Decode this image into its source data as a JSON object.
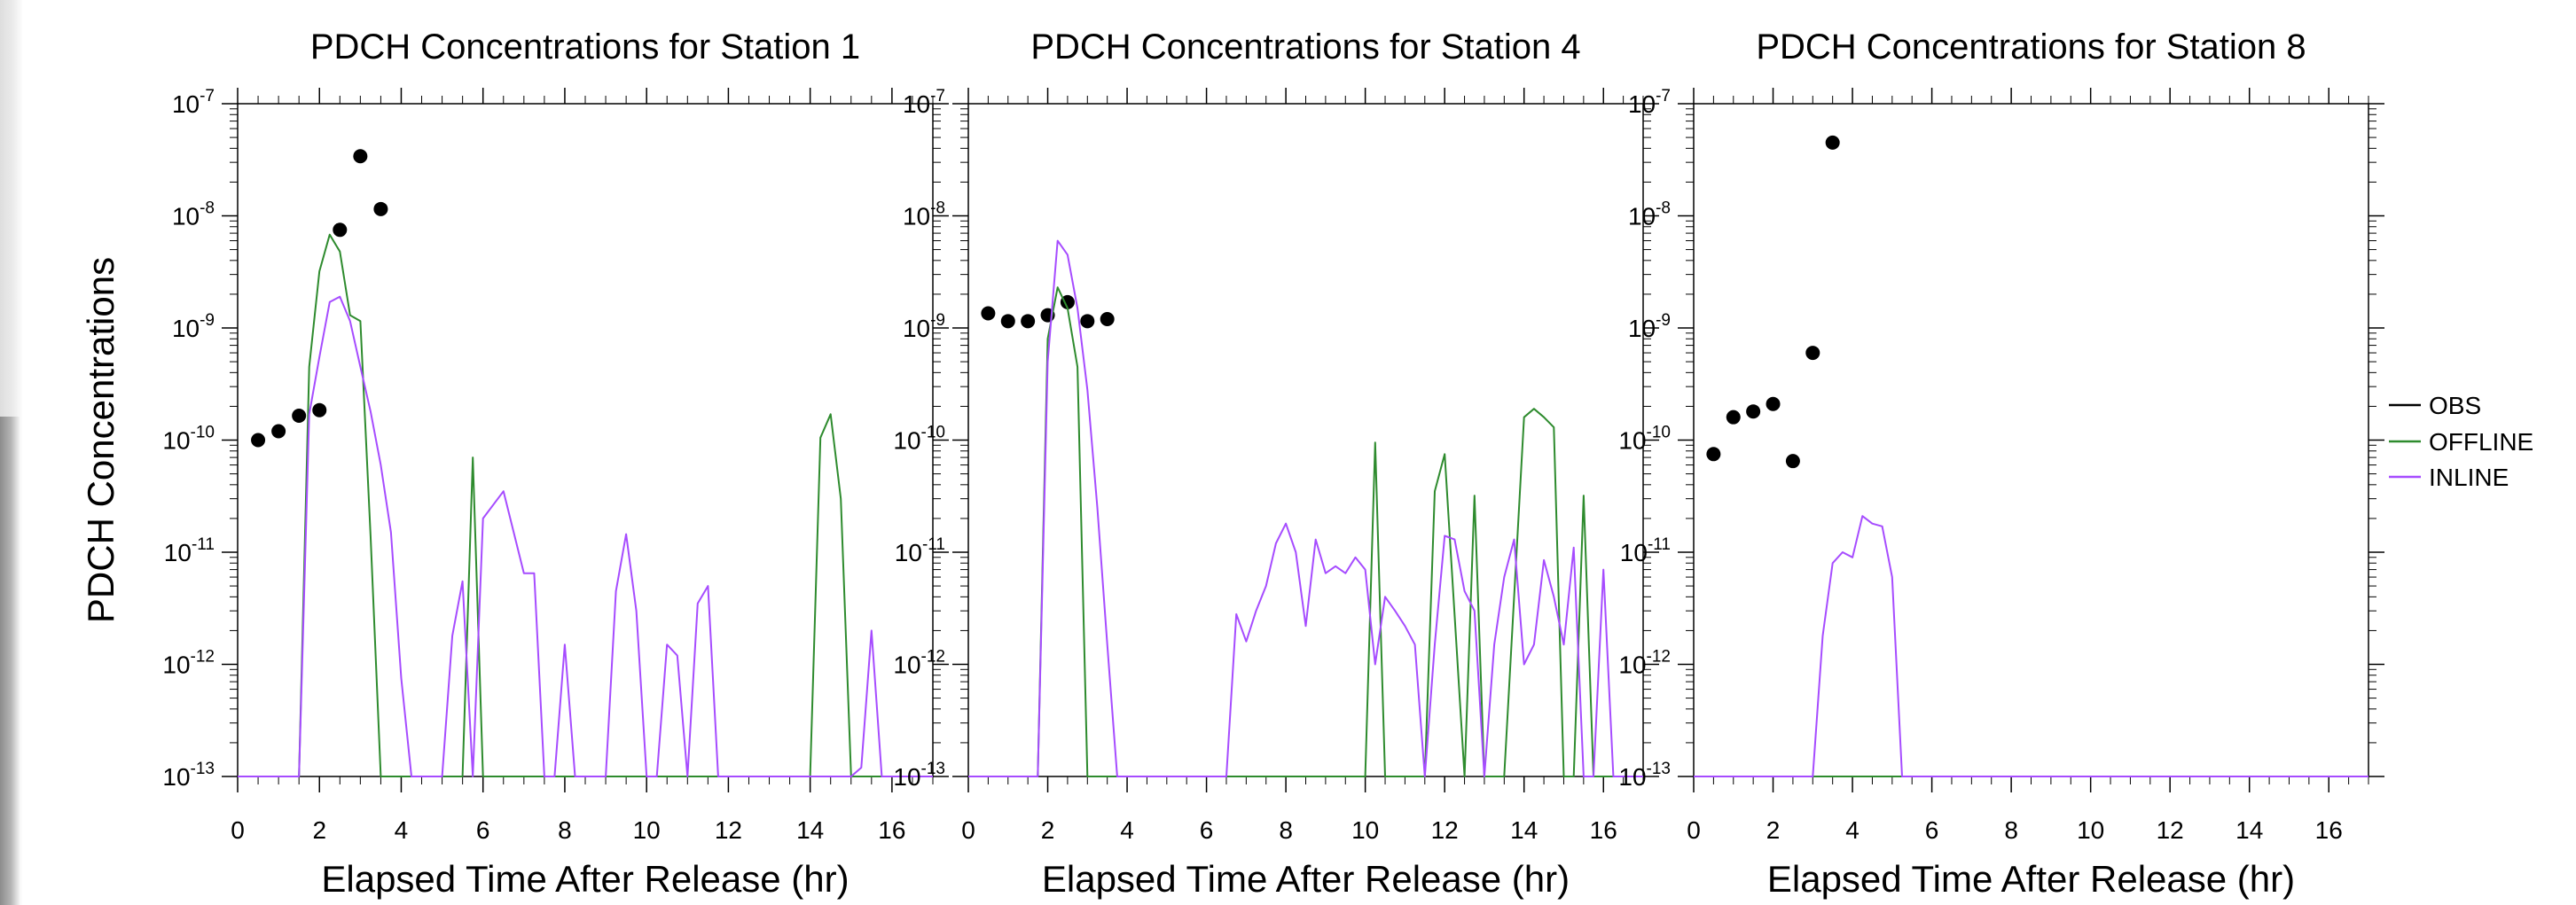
{
  "chart_data": [
    {
      "type": "line",
      "title": "PDCH Concentrations for Station 1",
      "xlabel": "Elapsed Time After Release (hr)",
      "ylabel": "PDCH Concentrations",
      "xlim": [
        0,
        17
      ],
      "ylim": [
        1e-13,
        1e-07
      ],
      "yscale": "log",
      "xticks": [
        0,
        2,
        4,
        6,
        8,
        10,
        12,
        14,
        16
      ],
      "yticks": [
        1e-13,
        1e-12,
        1e-11,
        1e-10,
        1e-09,
        1e-08,
        1e-07
      ],
      "series": [
        {
          "name": "OBS",
          "style": "markers",
          "color": "#000000",
          "x": [
            0.5,
            1.0,
            1.5,
            2.0,
            2.5,
            3.0,
            3.5
          ],
          "y": [
            1e-10,
            1.2e-10,
            1.65e-10,
            1.85e-10,
            7.5e-09,
            3.4e-08,
            1.15e-08
          ]
        },
        {
          "name": "OFFLINE",
          "style": "line",
          "color": "#2e8b2e",
          "x": [
            0,
            1.5,
            1.75,
            2.0,
            2.25,
            2.5,
            2.75,
            3.0,
            3.25,
            3.5,
            5.5,
            5.75,
            6.0,
            14.0,
            14.25,
            14.5,
            14.75,
            15.0,
            17.0
          ],
          "y": [
            1e-13,
            1e-13,
            4.5e-10,
            3.2e-09,
            6.8e-09,
            4.8e-09,
            1.3e-09,
            1.15e-09,
            1.4e-11,
            1e-13,
            1e-13,
            7e-11,
            1e-13,
            1e-13,
            1.05e-10,
            1.7e-10,
            3e-11,
            1e-13,
            1e-13
          ]
        },
        {
          "name": "INLINE",
          "style": "line",
          "color": "#a64cff",
          "x": [
            0,
            1.5,
            1.75,
            2.0,
            2.25,
            2.5,
            2.75,
            3.0,
            3.25,
            3.5,
            3.75,
            4.0,
            4.25,
            5.0,
            5.25,
            5.5,
            5.75,
            6.0,
            6.5,
            7.0,
            7.25,
            7.5,
            7.75,
            8.0,
            8.25,
            9.0,
            9.25,
            9.5,
            9.75,
            10.0,
            10.25,
            10.5,
            10.75,
            11.0,
            11.25,
            11.5,
            11.75,
            15.0,
            15.25,
            15.5,
            15.75,
            17.0
          ],
          "y": [
            1e-13,
            1e-13,
            1.7e-10,
            5.5e-10,
            1.7e-09,
            1.9e-09,
            1.15e-09,
            4.5e-10,
            1.8e-10,
            6e-11,
            1.5e-11,
            7.5e-13,
            1e-13,
            1e-13,
            1.8e-12,
            5.5e-12,
            1e-13,
            2e-11,
            3.5e-11,
            6.5e-12,
            6.5e-12,
            1e-13,
            1e-13,
            1.5e-12,
            1e-13,
            1e-13,
            4.5e-12,
            1.45e-11,
            3e-12,
            1e-13,
            1e-13,
            1.5e-12,
            1.2e-12,
            1e-13,
            3.5e-12,
            5e-12,
            1e-13,
            1e-13,
            1.2e-13,
            2e-12,
            1e-13,
            1e-13
          ]
        }
      ]
    },
    {
      "type": "line",
      "title": "PDCH Concentrations for Station 4",
      "xlabel": "Elapsed Time After Release (hr)",
      "ylabel": "",
      "xlim": [
        0,
        17
      ],
      "ylim": [
        1e-13,
        1e-07
      ],
      "yscale": "log",
      "xticks": [
        0,
        2,
        4,
        6,
        8,
        10,
        12,
        14,
        16
      ],
      "yticks": [
        1e-13,
        1e-12,
        1e-11,
        1e-10,
        1e-09,
        1e-08,
        1e-07
      ],
      "series": [
        {
          "name": "OBS",
          "style": "markers",
          "color": "#000000",
          "x": [
            0.5,
            1.0,
            1.5,
            2.0,
            2.5,
            3.0,
            3.5
          ],
          "y": [
            1.35e-09,
            1.15e-09,
            1.15e-09,
            1.3e-09,
            1.7e-09,
            1.15e-09,
            1.2e-09
          ]
        },
        {
          "name": "OFFLINE",
          "style": "line",
          "color": "#2e8b2e",
          "x": [
            0,
            1.75,
            2.0,
            2.25,
            2.5,
            2.75,
            3.0,
            10.0,
            10.25,
            10.5,
            11.5,
            11.75,
            12.0,
            12.5,
            12.75,
            13.0,
            13.5,
            14.0,
            14.25,
            14.5,
            14.75,
            15.0,
            15.25,
            15.5,
            15.75,
            17.0
          ],
          "y": [
            1e-13,
            1e-13,
            8e-10,
            2.3e-09,
            1.5e-09,
            4.5e-10,
            1e-13,
            1e-13,
            9.5e-11,
            1e-13,
            1e-13,
            3.5e-11,
            7.5e-11,
            1e-13,
            3.2e-11,
            1e-13,
            1e-13,
            1.6e-10,
            1.9e-10,
            1.6e-10,
            1.3e-10,
            1e-13,
            1e-13,
            3.2e-11,
            1e-13,
            1e-13
          ]
        },
        {
          "name": "INLINE",
          "style": "line",
          "color": "#a64cff",
          "x": [
            0,
            1.75,
            2.0,
            2.25,
            2.5,
            2.75,
            3.0,
            3.25,
            3.5,
            3.75,
            4.0,
            6.5,
            6.75,
            7.0,
            7.25,
            7.5,
            7.75,
            8.0,
            8.25,
            8.5,
            8.75,
            9.0,
            9.25,
            9.5,
            9.75,
            10.0,
            10.25,
            10.5,
            10.75,
            11.0,
            11.25,
            11.5,
            11.75,
            12.0,
            12.25,
            12.5,
            12.75,
            13.0,
            13.25,
            13.5,
            13.75,
            14.0,
            14.25,
            14.5,
            14.75,
            15.0,
            15.25,
            15.5,
            15.75,
            16.0,
            16.25,
            17.0
          ],
          "y": [
            1e-13,
            1e-13,
            5e-10,
            6e-09,
            4.5e-09,
            1.5e-09,
            2.8e-10,
            2.5e-11,
            1.5e-12,
            1e-13,
            1e-13,
            1e-13,
            2.8e-12,
            1.6e-12,
            3e-12,
            5e-12,
            1.2e-11,
            1.8e-11,
            1e-11,
            2.2e-12,
            1.3e-11,
            6.5e-12,
            7.5e-12,
            6.5e-12,
            9e-12,
            7e-12,
            1e-12,
            4e-12,
            3e-12,
            2.2e-12,
            1.5e-12,
            1e-13,
            1.5e-12,
            1.4e-11,
            1.3e-11,
            4.5e-12,
            3e-12,
            1e-13,
            1.5e-12,
            6e-12,
            1.3e-11,
            1e-12,
            1.5e-12,
            8.5e-12,
            4e-12,
            1.5e-12,
            1.1e-11,
            1e-13,
            1e-13,
            7e-12,
            1e-13,
            1e-13
          ]
        }
      ]
    },
    {
      "type": "line",
      "title": "PDCH Concentrations for Station 8",
      "xlabel": "Elapsed Time After Release (hr)",
      "ylabel": "",
      "xlim": [
        0,
        17
      ],
      "ylim": [
        1e-13,
        1e-07
      ],
      "yscale": "log",
      "xticks": [
        0,
        2,
        4,
        6,
        8,
        10,
        12,
        14,
        16
      ],
      "yticks": [
        1e-13,
        1e-12,
        1e-11,
        1e-10,
        1e-09,
        1e-08,
        1e-07
      ],
      "series": [
        {
          "name": "OBS",
          "style": "markers",
          "color": "#000000",
          "x": [
            0.5,
            1.0,
            1.5,
            2.0,
            2.5,
            3.0,
            3.5
          ],
          "y": [
            7.5e-11,
            1.6e-10,
            1.8e-10,
            2.1e-10,
            6.5e-11,
            6e-10,
            4.5e-08
          ]
        },
        {
          "name": "OFFLINE",
          "style": "line",
          "color": "#2e8b2e",
          "x": [
            0,
            17.0
          ],
          "y": [
            1e-13,
            1e-13
          ]
        },
        {
          "name": "INLINE",
          "style": "line",
          "color": "#a64cff",
          "x": [
            0,
            3.0,
            3.25,
            3.5,
            3.75,
            4.0,
            4.25,
            4.5,
            4.75,
            5.0,
            5.25,
            17.0
          ],
          "y": [
            1e-13,
            1e-13,
            1.8e-12,
            8e-12,
            1e-11,
            9e-12,
            2.1e-11,
            1.8e-11,
            1.7e-11,
            6e-12,
            1e-13,
            1e-13
          ]
        }
      ]
    }
  ],
  "legend": {
    "position": "right",
    "items": [
      {
        "label": "OBS",
        "color": "#000000"
      },
      {
        "label": "OFFLINE",
        "color": "#2e8b2e"
      },
      {
        "label": "INLINE",
        "color": "#a64cff"
      }
    ]
  }
}
